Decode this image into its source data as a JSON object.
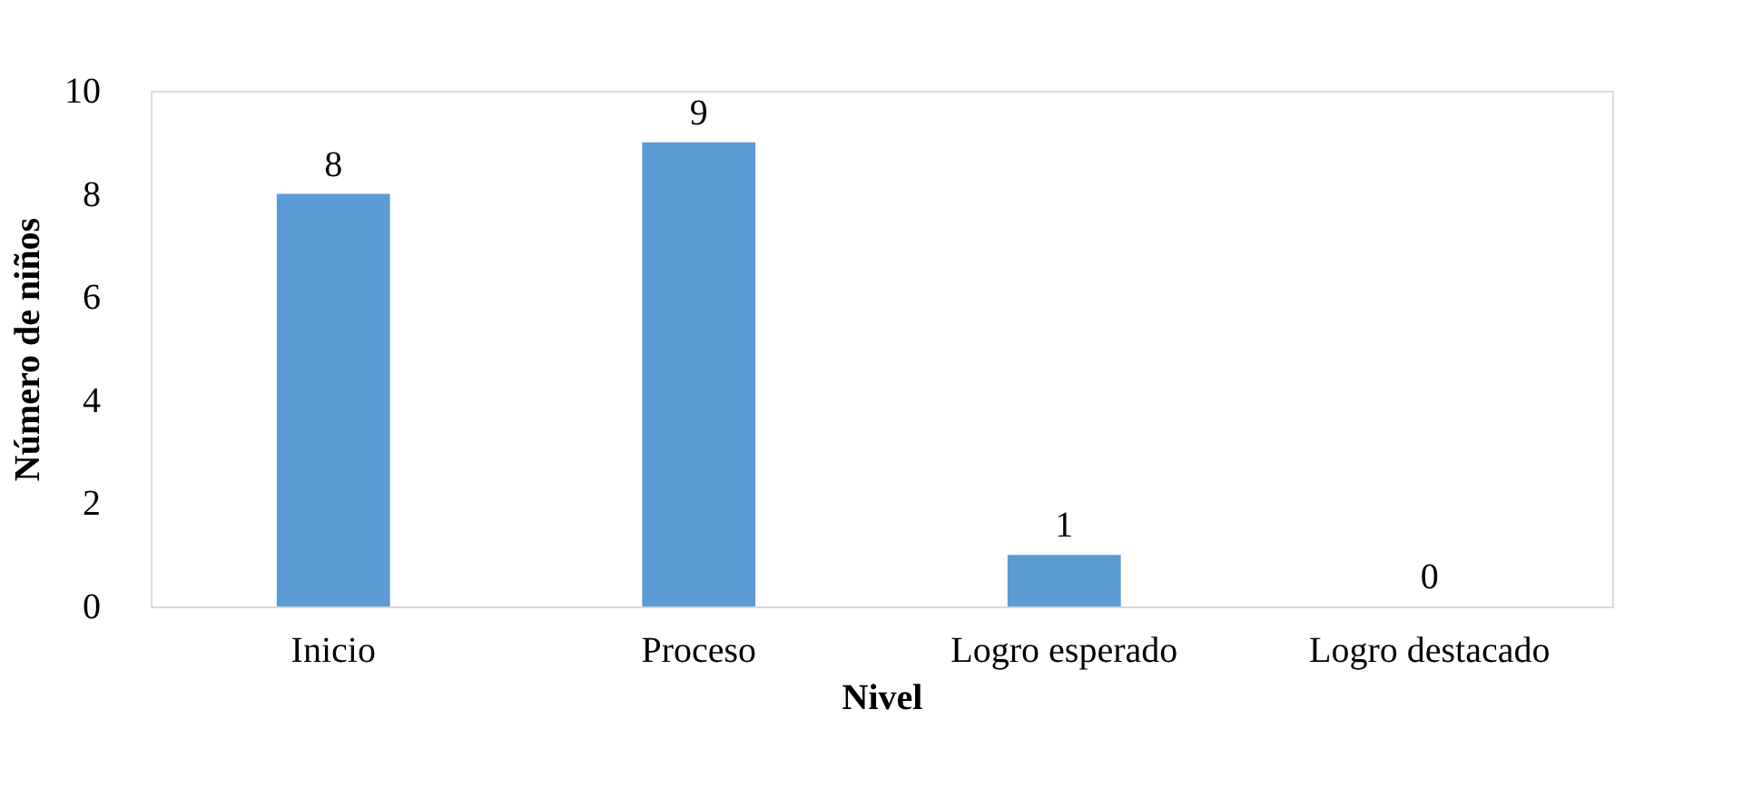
{
  "chart_data": {
    "type": "bar",
    "xlabel": "Nivel",
    "ylabel": "Número de niños",
    "categories": [
      "Inicio",
      "Proceso",
      "Logro esperado",
      "Logro destacado"
    ],
    "values": [
      8,
      9,
      1,
      0
    ],
    "color": "#5b9bd5",
    "ylim": [
      0,
      10
    ],
    "yticks": [
      0,
      2,
      4,
      6,
      8,
      10
    ],
    "grid": false,
    "data_labels": true
  }
}
